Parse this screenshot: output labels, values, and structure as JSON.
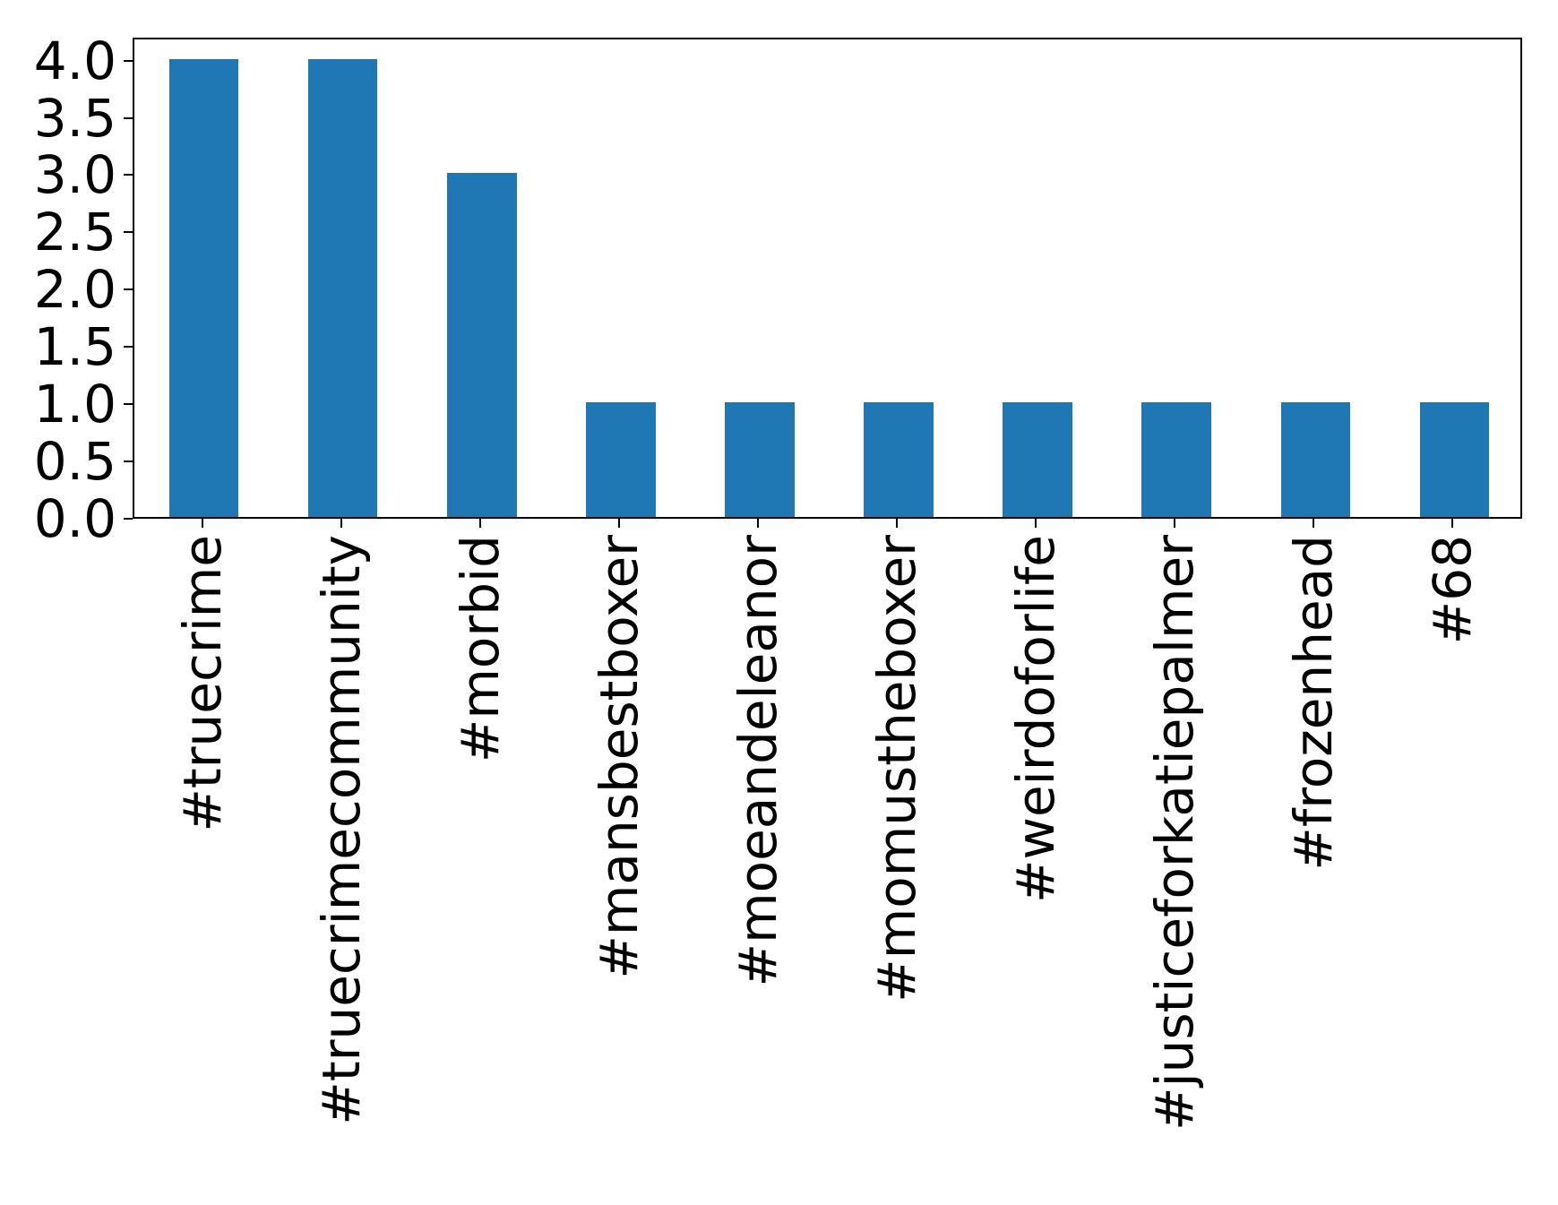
{
  "chart_data": {
    "type": "bar",
    "categories": [
      "#truecrime",
      "#truecrimecommunity",
      "#morbid",
      "#mansbestboxer",
      "#moeandeleanor",
      "#momustheboxer",
      "#weirdoforlife",
      "#justiceforkatiepalmer",
      "#frozenhead",
      "#68"
    ],
    "values": [
      4,
      4,
      3,
      1,
      1,
      1,
      1,
      1,
      1,
      1
    ],
    "title": "",
    "xlabel": "",
    "ylabel": "",
    "ylim": [
      0,
      4.2
    ],
    "yticks": [
      0.0,
      0.5,
      1.0,
      1.5,
      2.0,
      2.5,
      3.0,
      3.5,
      4.0
    ],
    "ytick_labels": [
      "0.0",
      "0.5",
      "1.0",
      "1.5",
      "2.0",
      "2.5",
      "3.0",
      "3.5",
      "4.0"
    ],
    "xtick_rotation_degrees": 90,
    "bar_color": "#1f77b4",
    "axis_color": "#000000",
    "background_color": "#ffffff",
    "bar_width_fraction": 0.5,
    "grid": false,
    "legend": false
  }
}
